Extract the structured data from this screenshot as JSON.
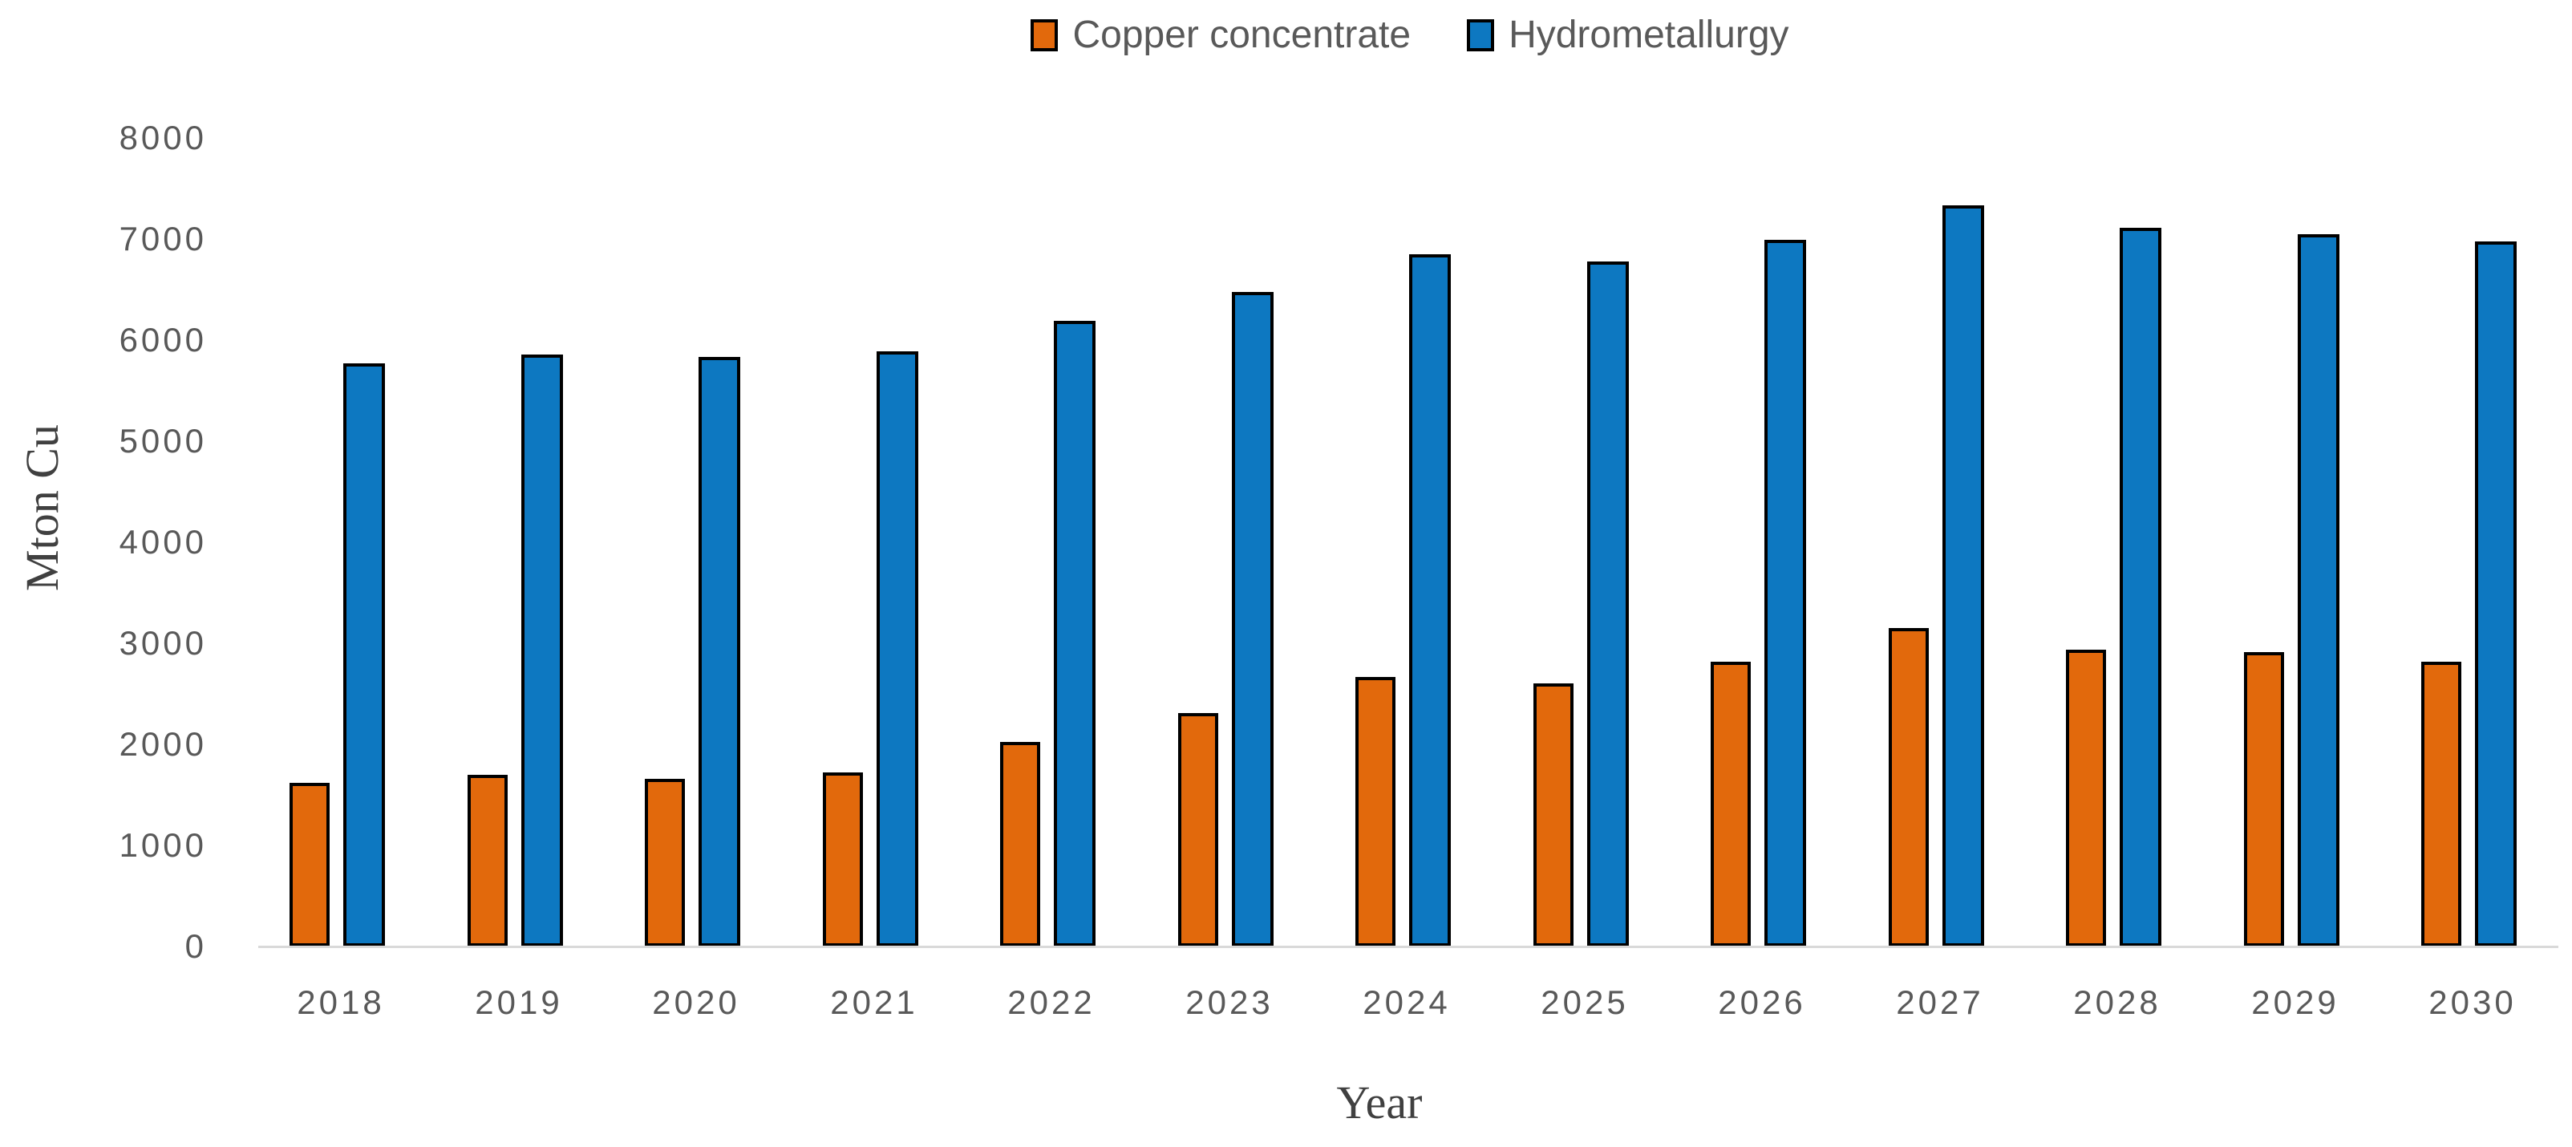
{
  "chart_data": {
    "type": "bar",
    "title": "",
    "categories": [
      "2018",
      "2019",
      "2020",
      "2021",
      "2022",
      "2023",
      "2024",
      "2025",
      "2026",
      "2027",
      "2028",
      "2029",
      "2030"
    ],
    "series": [
      {
        "name": "Copper concentrate",
        "color": "#e2690c",
        "border_color": "#000000",
        "values": [
          1620,
          1700,
          1660,
          1720,
          2020,
          2310,
          2670,
          2600,
          2820,
          3150,
          2940,
          2910,
          2820
        ]
      },
      {
        "name": "Hydrometallurgy",
        "color": "#0d78c1",
        "border_color": "#000000",
        "values": [
          5770,
          5860,
          5830,
          5890,
          6190,
          6480,
          6850,
          6780,
          6990,
          7330,
          7110,
          7050,
          6980
        ]
      }
    ],
    "xlabel": "Year",
    "ylabel": "Mton Cu",
    "ylim": [
      0,
      8000
    ],
    "yticks": [
      0,
      1000,
      2000,
      3000,
      4000,
      5000,
      6000,
      7000,
      8000
    ],
    "grid": false,
    "legend_position": "top-center",
    "axis_line_color": "#d9d9d9",
    "tick_label_color": "#595959",
    "axis_title_color": "#404040"
  }
}
